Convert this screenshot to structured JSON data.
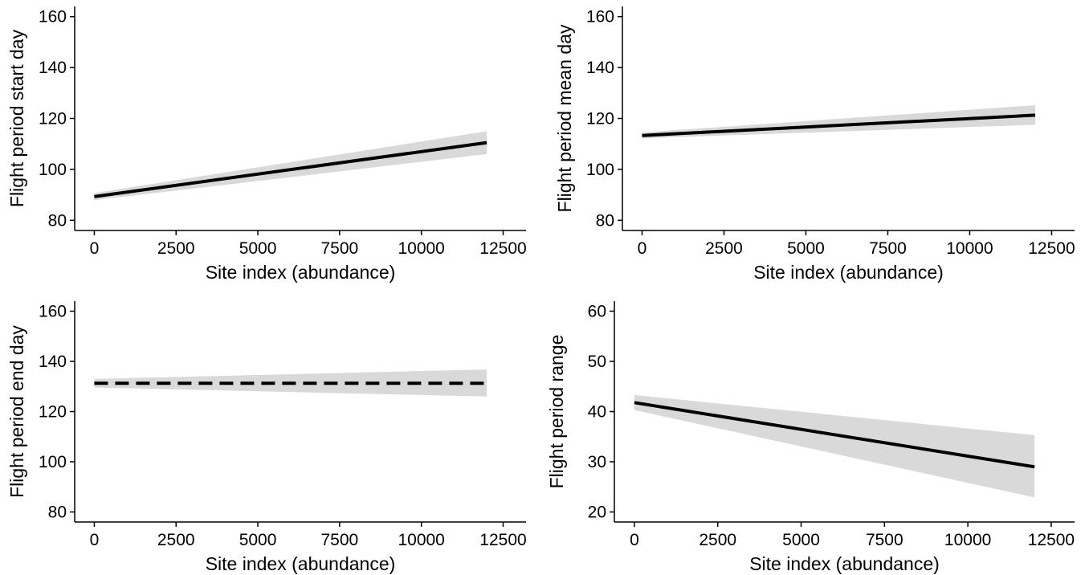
{
  "colors": {
    "line": "#000000",
    "ribbon": "#d9d9d9",
    "axis": "#000000"
  },
  "chart_data": [
    {
      "type": "line",
      "xlabel": "Site index (abundance)",
      "ylabel": "Flight period start day",
      "xlim": [
        -600,
        13200
      ],
      "ylim": [
        76,
        164
      ],
      "xticks": [
        0,
        2500,
        5000,
        7500,
        10000,
        12500
      ],
      "yticks": [
        80,
        100,
        120,
        140,
        160
      ],
      "grid": false,
      "line_style": "solid",
      "series": [
        {
          "x": [
            0,
            12000
          ],
          "y": [
            89.3,
            110.5
          ],
          "lower": [
            87.9,
            106.0
          ],
          "upper": [
            90.7,
            115.0
          ]
        }
      ]
    },
    {
      "type": "line",
      "xlabel": "Site index (abundance)",
      "ylabel": "Flight period mean day",
      "xlim": [
        -600,
        13200
      ],
      "ylim": [
        76,
        164
      ],
      "xticks": [
        0,
        2500,
        5000,
        7500,
        10000,
        12500
      ],
      "yticks": [
        80,
        100,
        120,
        140,
        160
      ],
      "grid": false,
      "line_style": "solid",
      "series": [
        {
          "x": [
            0,
            12000
          ],
          "y": [
            113.3,
            121.3
          ],
          "lower": [
            112.2,
            117.5
          ],
          "upper": [
            114.5,
            125.2
          ]
        }
      ]
    },
    {
      "type": "line",
      "xlabel": "Site index (abundance)",
      "ylabel": "Flight period end day",
      "xlim": [
        -600,
        13200
      ],
      "ylim": [
        76,
        164
      ],
      "xticks": [
        0,
        2500,
        5000,
        7500,
        10000,
        12500
      ],
      "yticks": [
        80,
        100,
        120,
        140,
        160
      ],
      "grid": false,
      "line_style": "dashed",
      "series": [
        {
          "x": [
            0,
            12000
          ],
          "y": [
            131.3,
            131.3
          ],
          "lower": [
            129.6,
            126.0
          ],
          "upper": [
            133.0,
            136.8
          ]
        }
      ]
    },
    {
      "type": "line",
      "xlabel": "Site index (abundance)",
      "ylabel": "Flight period range",
      "xlim": [
        -600,
        13200
      ],
      "ylim": [
        18,
        62
      ],
      "xticks": [
        0,
        2500,
        5000,
        7500,
        10000,
        12500
      ],
      "yticks": [
        20,
        30,
        40,
        50,
        60
      ],
      "grid": false,
      "line_style": "solid",
      "series": [
        {
          "x": [
            0,
            12000
          ],
          "y": [
            41.8,
            29.0
          ],
          "lower": [
            40.3,
            22.9
          ],
          "upper": [
            43.3,
            35.3
          ]
        }
      ]
    }
  ]
}
